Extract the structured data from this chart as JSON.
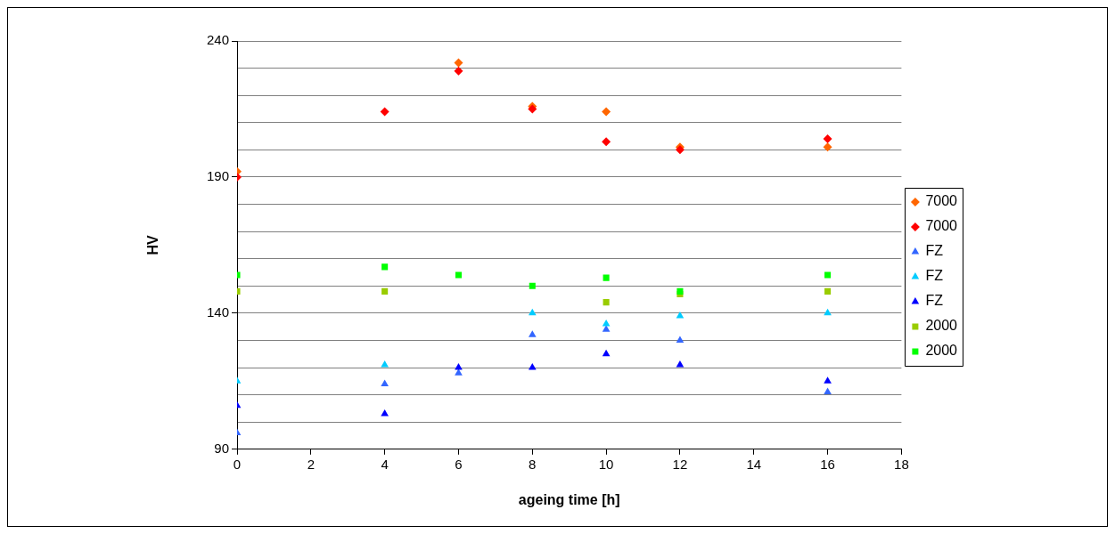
{
  "chart_data": {
    "type": "scatter",
    "xlabel": "ageing time [h]",
    "ylabel": "HV",
    "x": [
      0,
      4,
      6,
      8,
      10,
      12,
      16
    ],
    "xlim": [
      0,
      18
    ],
    "xticks": [
      0,
      2,
      4,
      6,
      8,
      10,
      12,
      14,
      16,
      18
    ],
    "ylim": [
      90,
      240
    ],
    "yticks": [
      90,
      {
        "value": 100,
        "label": null
      },
      {
        "value": 110,
        "label": null
      },
      {
        "value": 120,
        "label": null
      },
      {
        "value": 130,
        "label": null
      },
      140,
      {
        "value": 150,
        "label": null
      },
      {
        "value": 160,
        "label": null
      },
      {
        "value": 170,
        "label": null
      },
      {
        "value": 180,
        "label": null
      },
      190,
      {
        "value": 200,
        "label": null
      },
      {
        "value": 210,
        "label": null
      },
      {
        "value": 220,
        "label": null
      },
      {
        "value": 230,
        "label": null
      },
      240
    ],
    "grid": "y",
    "legend": "right",
    "series": [
      {
        "name": "7000",
        "color": "#ff6600",
        "marker": "diamond",
        "values": [
          192,
          null,
          232,
          216,
          214,
          201,
          201
        ]
      },
      {
        "name": "7000",
        "color": "#ff0000",
        "marker": "diamond",
        "values": [
          190,
          214,
          229,
          215,
          203,
          200,
          204
        ]
      },
      {
        "name": "FZ",
        "color": "#3366ff",
        "marker": "triangle",
        "values": [
          96,
          114,
          118,
          132,
          134,
          130,
          111
        ]
      },
      {
        "name": "FZ",
        "color": "#00ccff",
        "marker": "triangle",
        "values": [
          115,
          121,
          null,
          140,
          136,
          139,
          140
        ]
      },
      {
        "name": "FZ",
        "color": "#0000ff",
        "marker": "triangle",
        "values": [
          106,
          103,
          120,
          120,
          125,
          121,
          115
        ]
      },
      {
        "name": "2000",
        "color": "#99cc00",
        "marker": "square",
        "values": [
          148,
          148,
          null,
          null,
          144,
          147,
          148
        ]
      },
      {
        "name": "2000",
        "color": "#00ff00",
        "marker": "square",
        "values": [
          154,
          157,
          154,
          150,
          153,
          148,
          154
        ]
      }
    ]
  }
}
